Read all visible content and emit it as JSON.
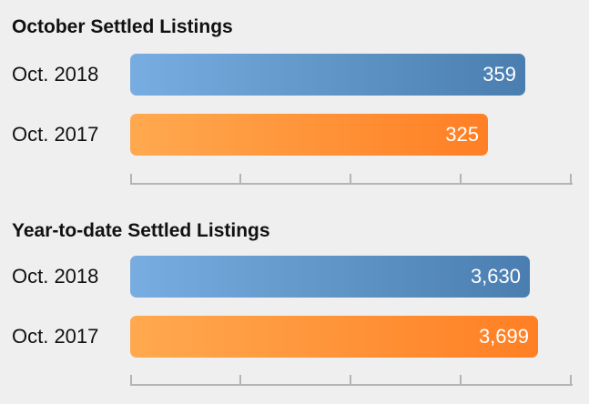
{
  "colors": {
    "current_year": "#4a7eb0",
    "previous_year": "#ff7f24",
    "axis": "#b4b4b4",
    "background": "#efefef"
  },
  "chart_data": [
    {
      "type": "bar",
      "orientation": "horizontal",
      "title": "October Settled Listings",
      "categories": [
        "Oct. 2018",
        "Oct. 2017"
      ],
      "values": [
        359,
        325
      ],
      "value_labels": [
        "359",
        "325"
      ],
      "xlim": [
        0,
        400
      ],
      "grid": false,
      "legend": "none"
    },
    {
      "type": "bar",
      "orientation": "horizontal",
      "title": "Year-to-date Settled Listings",
      "categories": [
        "Oct. 2018",
        "Oct. 2017"
      ],
      "values": [
        3630,
        3699
      ],
      "value_labels": [
        "3,630",
        "3,699"
      ],
      "xlim": [
        0,
        4000
      ],
      "grid": false,
      "legend": "none"
    }
  ]
}
